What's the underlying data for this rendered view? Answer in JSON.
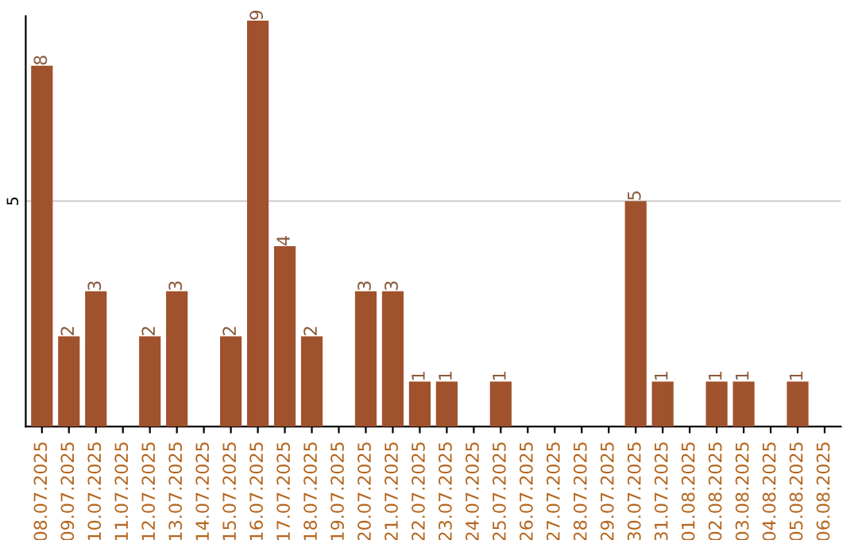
{
  "chart_data": {
    "type": "bar",
    "categories": [
      "08.07.2025",
      "09.07.2025",
      "10.07.2025",
      "11.07.2025",
      "12.07.2025",
      "13.07.2025",
      "14.07.2025",
      "15.07.2025",
      "16.07.2025",
      "17.07.2025",
      "18.07.2025",
      "19.07.2025",
      "20.07.2025",
      "21.07.2025",
      "22.07.2025",
      "23.07.2025",
      "24.07.2025",
      "25.07.2025",
      "26.07.2025",
      "27.07.2025",
      "28.07.2025",
      "29.07.2025",
      "30.07.2025",
      "31.07.2025",
      "01.08.2025",
      "02.08.2025",
      "03.08.2025",
      "04.08.2025",
      "05.08.2025",
      "06.08.2025"
    ],
    "values": [
      8,
      2,
      3,
      0,
      2,
      3,
      0,
      2,
      9,
      4,
      2,
      0,
      3,
      3,
      1,
      1,
      0,
      1,
      0,
      0,
      0,
      0,
      5,
      1,
      0,
      1,
      1,
      0,
      1,
      0
    ],
    "value_labels": [
      "8",
      "2",
      "3",
      null,
      "2",
      "3",
      null,
      "2",
      "9",
      "4",
      "2",
      null,
      "3",
      "3",
      "1",
      "1",
      null,
      "1",
      null,
      null,
      null,
      null,
      "5",
      "1",
      null,
      "1",
      "1",
      null,
      "1",
      null
    ],
    "color": "#a0522d",
    "ylim": [
      0,
      9.1
    ],
    "yticks": [
      5
    ],
    "grid": "y"
  }
}
